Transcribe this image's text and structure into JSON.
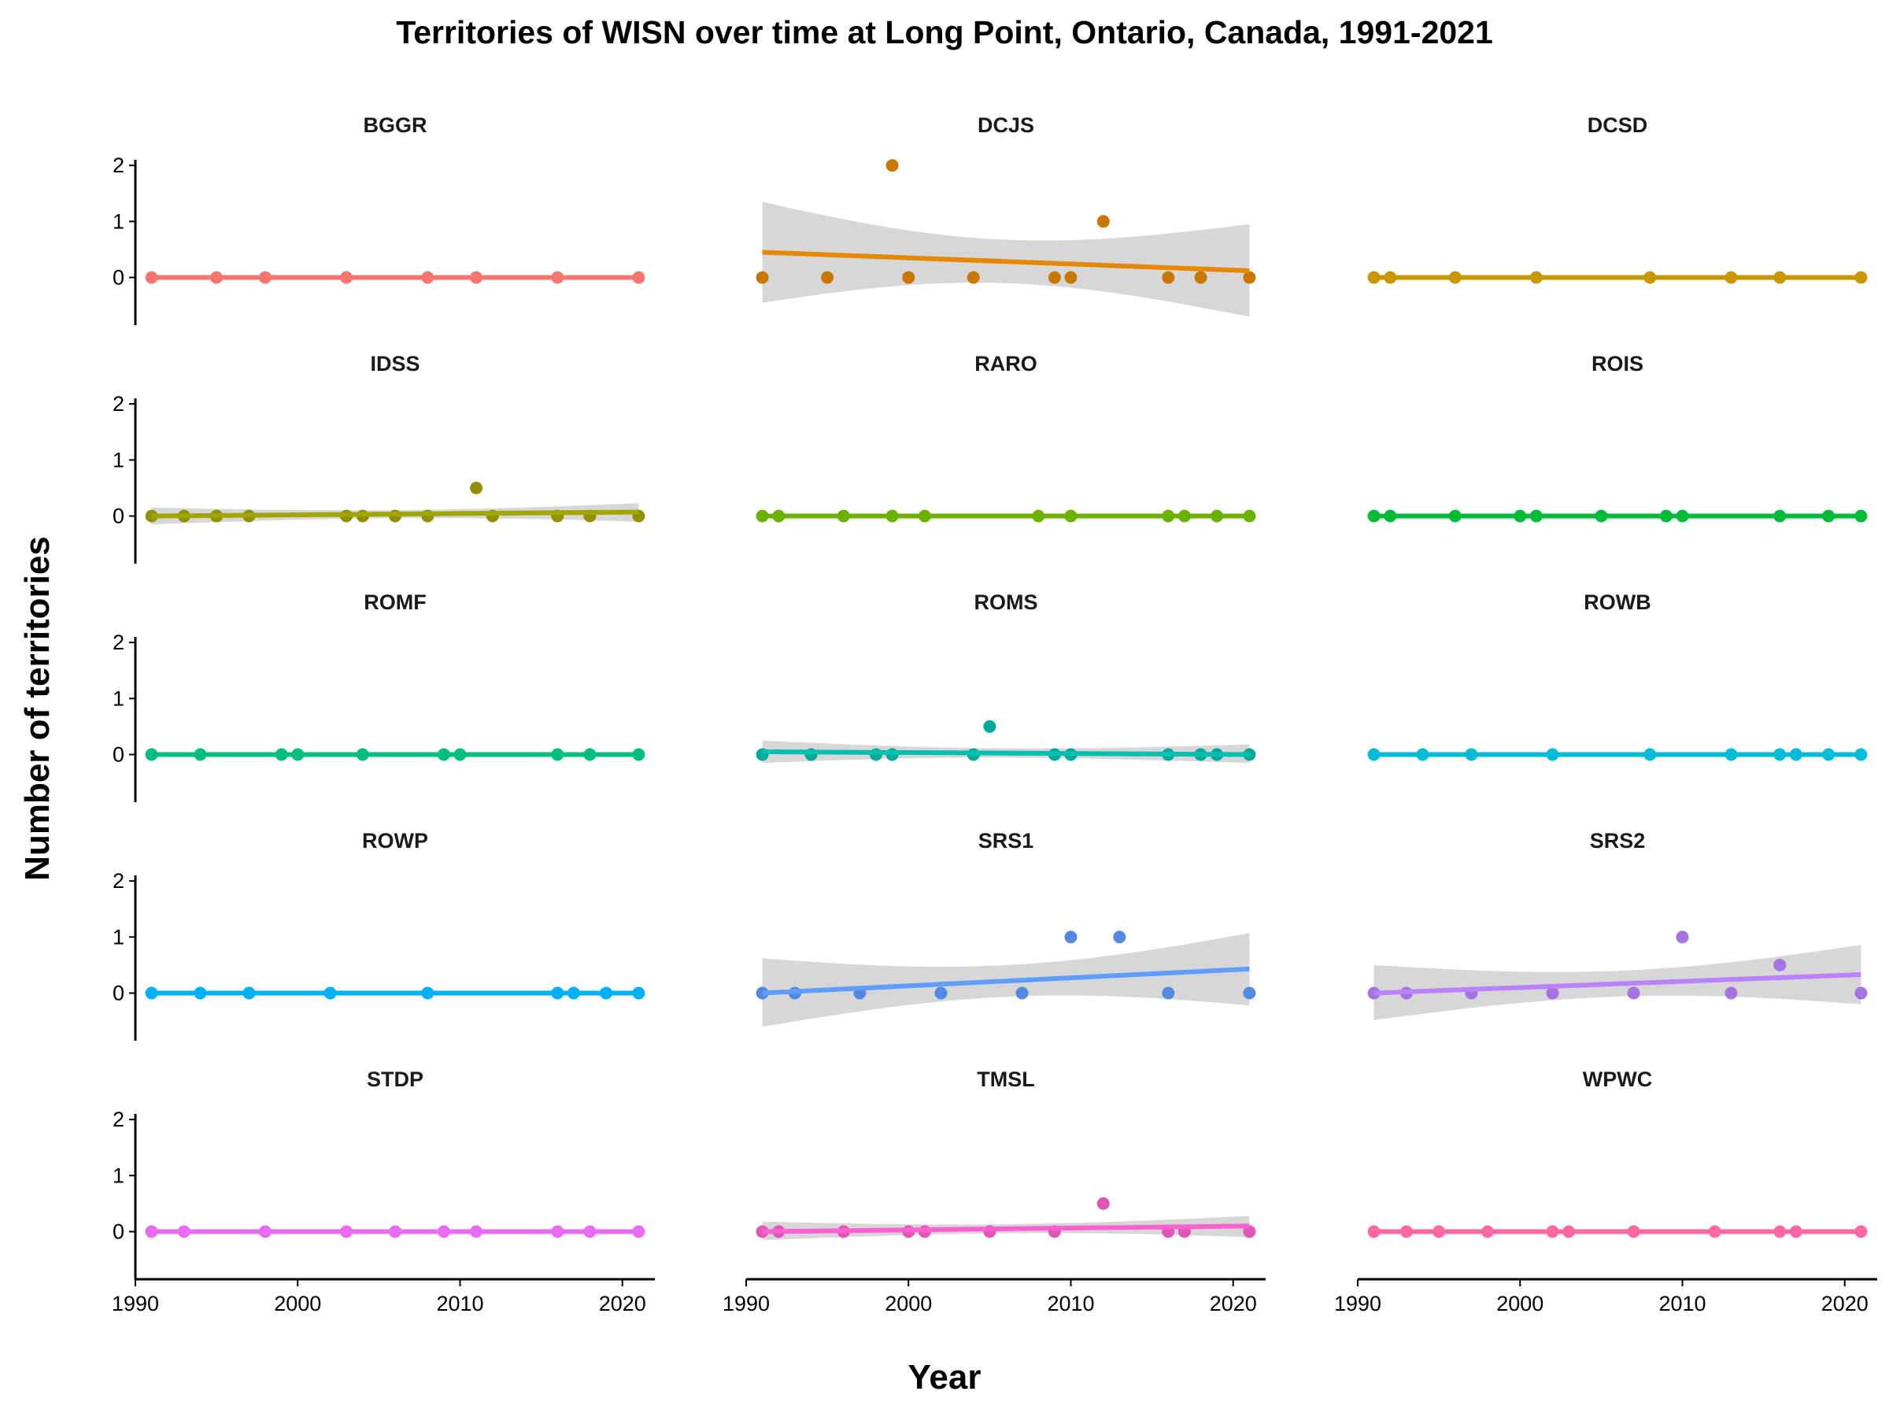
{
  "chart_data": {
    "type": "line",
    "title": "Territories of WISN over time at Long Point, Ontario, Canada, 1991-2021",
    "xlabel": "Year",
    "ylabel": "Number of territories",
    "xlim": [
      1990,
      2022
    ],
    "ylim": [
      -0.85,
      2.1
    ],
    "x_ticks": [
      "1990",
      "2000",
      "2010",
      "2020"
    ],
    "y_ticks": [
      "0",
      "1",
      "2"
    ],
    "grid": false,
    "legend": "none",
    "facets": [
      {
        "name": "BGGR",
        "color": "#F8766D",
        "x": [
          1991,
          1995,
          1998,
          2003,
          2008,
          2011,
          2016,
          2021
        ],
        "y": [
          0,
          0,
          0,
          0,
          0,
          0,
          0,
          0
        ],
        "trend": [
          0,
          0
        ],
        "band": null
      },
      {
        "name": "DCJS",
        "color": "#E58700",
        "x": [
          1991,
          1995,
          1999,
          2000,
          2004,
          2009,
          2010,
          2012,
          2016,
          2018,
          2021
        ],
        "y": [
          0,
          0,
          2,
          0,
          0,
          0,
          0,
          1,
          0,
          0,
          0
        ],
        "trend": [
          0.45,
          0.12
        ],
        "band": [
          [
            -0.45,
            1.35
          ],
          [
            -0.7,
            0.95
          ]
        ]
      },
      {
        "name": "DCSD",
        "color": "#C99800",
        "x": [
          1991,
          1992,
          1996,
          2001,
          2008,
          2013,
          2016,
          2021
        ],
        "y": [
          0,
          0,
          0,
          0,
          0,
          0,
          0,
          0
        ],
        "trend": [
          0,
          0
        ],
        "band": null
      },
      {
        "name": "IDSS",
        "color": "#A3A500",
        "x": [
          1991,
          1993,
          1995,
          1997,
          2003,
          2004,
          2006,
          2008,
          2011,
          2012,
          2016,
          2018,
          2021
        ],
        "y": [
          0,
          0,
          0,
          0,
          0,
          0,
          0,
          0,
          0.5,
          0,
          0,
          0,
          0
        ],
        "trend": [
          0,
          0.07
        ],
        "band": [
          [
            -0.15,
            0.15
          ],
          [
            -0.1,
            0.23
          ]
        ]
      },
      {
        "name": "RARO",
        "color": "#6BB100",
        "x": [
          1991,
          1992,
          1996,
          1999,
          2001,
          2008,
          2010,
          2016,
          2017,
          2019,
          2021
        ],
        "y": [
          0,
          0,
          0,
          0,
          0,
          0,
          0,
          0,
          0,
          0,
          0
        ],
        "trend": [
          0,
          0
        ],
        "band": null
      },
      {
        "name": "ROIS",
        "color": "#00BA38",
        "x": [
          1991,
          1992,
          1996,
          2000,
          2001,
          2005,
          2009,
          2010,
          2016,
          2019,
          2021
        ],
        "y": [
          0,
          0,
          0,
          0,
          0,
          0,
          0,
          0,
          0,
          0,
          0
        ],
        "trend": [
          0,
          0
        ],
        "band": null
      },
      {
        "name": "ROMF",
        "color": "#00BF7D",
        "x": [
          1991,
          1994,
          1999,
          2000,
          2004,
          2009,
          2010,
          2016,
          2018,
          2021
        ],
        "y": [
          0,
          0,
          0,
          0,
          0,
          0,
          0,
          0,
          0,
          0
        ],
        "trend": [
          0,
          0
        ],
        "band": null
      },
      {
        "name": "ROMS",
        "color": "#00C0AF",
        "x": [
          1991,
          1994,
          1998,
          1999,
          2004,
          2005,
          2009,
          2010,
          2016,
          2018,
          2019,
          2021
        ],
        "y": [
          0,
          0,
          0,
          0,
          0,
          0.5,
          0,
          0,
          0,
          0,
          0,
          0
        ],
        "trend": [
          0.05,
          0.0
        ],
        "band": [
          [
            -0.15,
            0.25
          ],
          [
            -0.15,
            0.18
          ]
        ]
      },
      {
        "name": "ROWB",
        "color": "#00BCD8",
        "x": [
          1991,
          1994,
          1997,
          2002,
          2008,
          2013,
          2016,
          2017,
          2019,
          2021
        ],
        "y": [
          0,
          0,
          0,
          0,
          0,
          0,
          0,
          0,
          0,
          0
        ],
        "trend": [
          0,
          0
        ],
        "band": null
      },
      {
        "name": "ROWP",
        "color": "#00B0F6",
        "x": [
          1991,
          1994,
          1997,
          2002,
          2008,
          2016,
          2017,
          2019,
          2021
        ],
        "y": [
          0,
          0,
          0,
          0,
          0,
          0,
          0,
          0,
          0
        ],
        "trend": [
          0,
          0
        ],
        "band": null
      },
      {
        "name": "SRS1",
        "color": "#619CFF",
        "x": [
          1991,
          1993,
          1997,
          2002,
          2007,
          2010,
          2013,
          2016,
          2021
        ],
        "y": [
          0,
          0,
          0,
          0,
          0,
          1,
          1,
          0,
          0
        ],
        "trend": [
          0.0,
          0.43
        ],
        "band": [
          [
            -0.6,
            0.62
          ],
          [
            -0.22,
            1.07
          ]
        ]
      },
      {
        "name": "SRS2",
        "color": "#B983FF",
        "x": [
          1991,
          1993,
          1997,
          2002,
          2007,
          2010,
          2013,
          2016,
          2021
        ],
        "y": [
          0,
          0,
          0,
          0,
          0,
          1,
          0,
          0.5,
          0
        ],
        "trend": [
          0.0,
          0.33
        ],
        "band": [
          [
            -0.48,
            0.5
          ],
          [
            -0.2,
            0.86
          ]
        ]
      },
      {
        "name": "STDP",
        "color": "#E76BF3",
        "x": [
          1991,
          1993,
          1998,
          2003,
          2006,
          2009,
          2011,
          2016,
          2018,
          2021
        ],
        "y": [
          0,
          0,
          0,
          0,
          0,
          0,
          0,
          0,
          0,
          0
        ],
        "trend": [
          0,
          0
        ],
        "band": null
      },
      {
        "name": "TMSL",
        "color": "#FD61D1",
        "x": [
          1991,
          1992,
          1996,
          2000,
          2001,
          2005,
          2009,
          2012,
          2016,
          2017,
          2021
        ],
        "y": [
          0,
          0,
          0,
          0,
          0,
          0,
          0,
          0.5,
          0,
          0,
          0
        ],
        "trend": [
          0.0,
          0.1
        ],
        "band": [
          [
            -0.15,
            0.18
          ],
          [
            -0.1,
            0.28
          ]
        ]
      },
      {
        "name": "WPWC",
        "color": "#FF67A4",
        "x": [
          1991,
          1993,
          1995,
          1998,
          2002,
          2003,
          2007,
          2012,
          2016,
          2017,
          2021
        ],
        "y": [
          0,
          0,
          0,
          0,
          0,
          0,
          0,
          0,
          0,
          0,
          0
        ],
        "trend": [
          0,
          0
        ],
        "band": null
      }
    ]
  }
}
